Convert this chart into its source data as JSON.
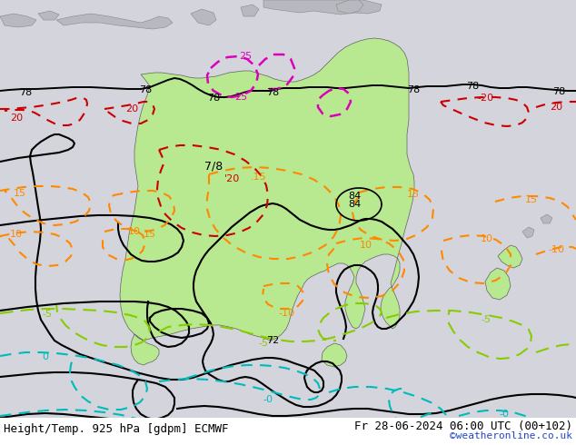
{
  "title_left": "Height/Temp. 925 hPa [gdpm] ECMWF",
  "title_right": "Fr 28-06-2024 06:00 UTC (00+102)",
  "credit": "©weatheronline.co.uk",
  "bg_color": "#d4d4dc",
  "land_color_green": "#b8e890",
  "land_color_grey": "#b8b8c0",
  "font_size_title": 9,
  "font_size_label": 8,
  "font_size_credit": 8
}
